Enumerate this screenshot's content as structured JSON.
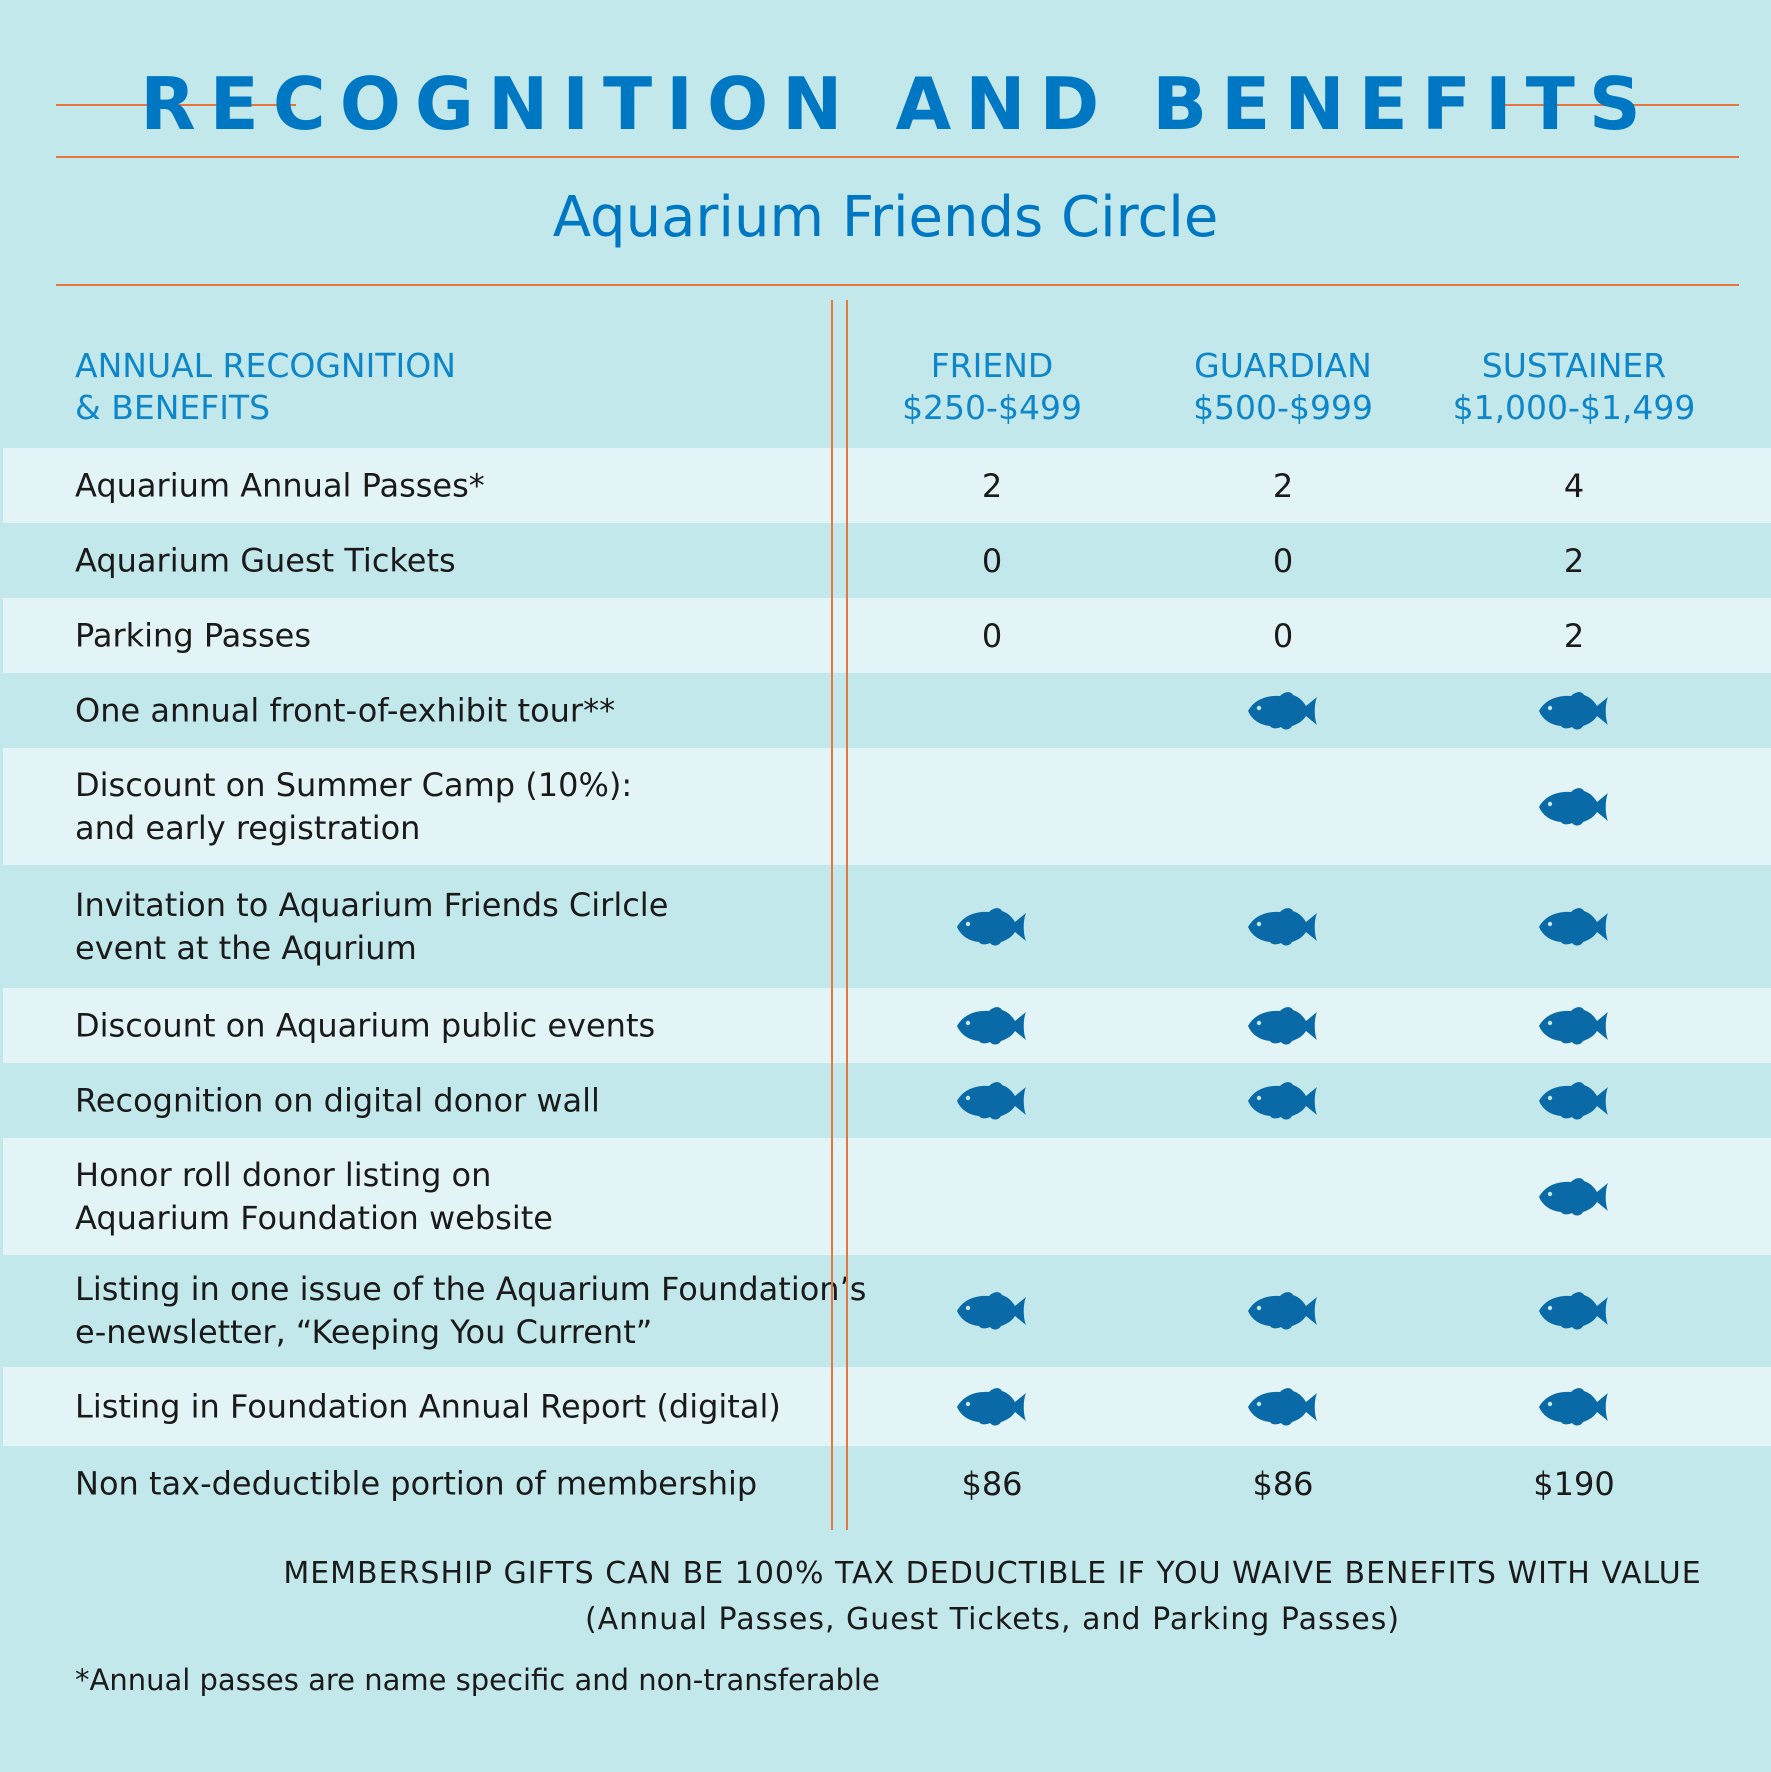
{
  "header": {
    "title": "RECOGNITION AND BENEFITS",
    "subtitle": "Aquarium Friends Circle"
  },
  "columns": {
    "benefits_header": "ANNUAL RECOGNITION\n& BENEFITS",
    "tiers": [
      {
        "name": "FRIEND",
        "range": "$250-$499"
      },
      {
        "name": "GUARDIAN",
        "range": "$500-$999"
      },
      {
        "name": "SUSTAINER",
        "range": "$1,000-$1,499"
      }
    ]
  },
  "check_icon": "fish-icon",
  "colors": {
    "accent_blue": "#0077c2",
    "fish_blue": "#0a6aa8",
    "rule_orange": "#e5763f",
    "background": "#c2e8eb",
    "row_light": "#e3f4f6"
  },
  "rows": [
    {
      "label": "Aquarium Annual Passes*",
      "values": [
        "2",
        "2",
        "4"
      ]
    },
    {
      "label": "Aquarium Guest Tickets",
      "values": [
        "0",
        "0",
        "2"
      ]
    },
    {
      "label": "Parking Passes",
      "values": [
        "0",
        "0",
        "2"
      ]
    },
    {
      "label": "One annual front-of-exhibit tour**",
      "values": [
        "",
        "fish",
        "fish"
      ]
    },
    {
      "label": "Discount on Summer Camp (10%):\nand early registration",
      "values": [
        "",
        "",
        "fish"
      ]
    },
    {
      "label": "Invitation to Aquarium Friends Cirlcle\nevent at the Aqurium",
      "values": [
        "fish",
        "fish",
        "fish"
      ]
    },
    {
      "label": "Discount on Aquarium public events",
      "values": [
        "fish",
        "fish",
        "fish"
      ]
    },
    {
      "label": "Recognition on digital donor wall",
      "values": [
        "fish",
        "fish",
        "fish"
      ]
    },
    {
      "label": "Honor roll donor listing on\nAquarium Foundation website",
      "values": [
        "",
        "",
        "fish"
      ]
    },
    {
      "label": "Listing in one issue of the Aquarium Foundation’s\ne-newsletter, “Keeping You Current”",
      "values": [
        "fish",
        "fish",
        "fish"
      ]
    },
    {
      "label": "Listing in Foundation Annual Report (digital)",
      "values": [
        "fish",
        "fish",
        "fish"
      ]
    },
    {
      "label": "Non tax-deductible portion of membership",
      "values": [
        "$86",
        "$86",
        "$190"
      ]
    }
  ],
  "footer": {
    "note_line1": "MEMBERSHIP GIFTS CAN BE 100% TAX DEDUCTIBLE IF YOU WAIVE BENEFITS WITH VALUE",
    "note_line2": "(Annual Passes, Guest Tickets, and Parking Passes)",
    "footnote": "*Annual passes are name specific and non-transferable"
  }
}
